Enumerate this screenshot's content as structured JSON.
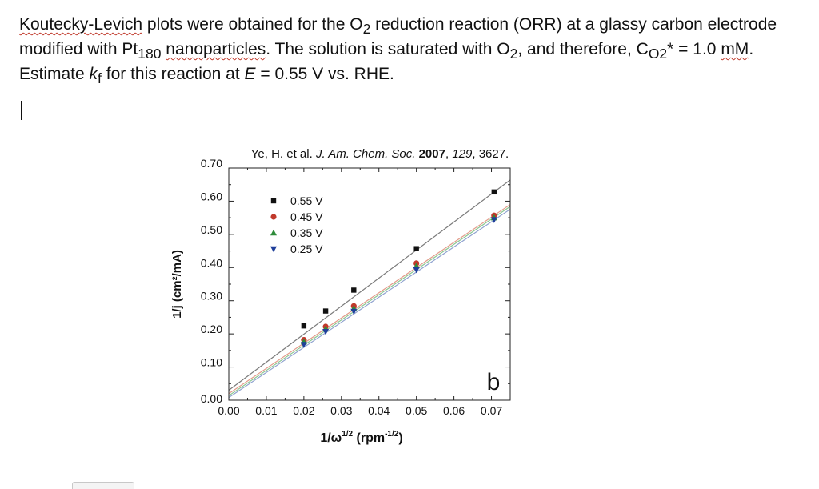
{
  "question": {
    "p1": "Koutecky-Levich",
    "p2": " plots were obtained for the O",
    "p3": "2",
    "p4": " reduction reaction (ORR) at a glassy carbon electrode modified with Pt",
    "p5": "180",
    "p6": " ",
    "p7": "nanoparticles",
    "p8": ". The solution is saturated with O",
    "p9": "2",
    "p10": ", and therefore, C",
    "p11": "O2",
    "p12": "* = 1.0 ",
    "p13": "mM",
    "p14": ". Estimate ",
    "p15": "k",
    "p16": "f",
    "p17": " for this reaction at ",
    "p18": "E",
    "p19": " = 0.55 V vs. RHE."
  },
  "chart_data": {
    "type": "scatter",
    "citation": {
      "authors": "Ye, H. et al.",
      "journal": "J. Am. Chem. Soc.",
      "year": "2007",
      "volume": "129",
      "pages": "3627."
    },
    "xlabel": {
      "base": "1/ω",
      "exp1": "1/2",
      "mid": " (rpm",
      "exp2": "-1/2",
      "end": ")"
    },
    "ylabel": "1/j (cm²/mA)",
    "xlim": [
      0,
      0.075
    ],
    "ylim": [
      0,
      0.7
    ],
    "xticks": [
      "0.00",
      "0.01",
      "0.02",
      "0.03",
      "0.04",
      "0.05",
      "0.06",
      "0.07"
    ],
    "yticks": [
      "0.00",
      "0.10",
      "0.20",
      "0.30",
      "0.40",
      "0.50",
      "0.60",
      "0.70"
    ],
    "panel_label": "b",
    "legend_position": "top-left",
    "series": [
      {
        "name": "0.55 V",
        "marker": "square",
        "color": "#111111",
        "line_color": "#7a7a7a",
        "x": [
          0.02,
          0.0258,
          0.0333,
          0.05,
          0.0707
        ],
        "y": [
          0.224,
          0.269,
          0.332,
          0.457,
          0.628
        ],
        "fit": [
          0.0302,
          8.45
        ]
      },
      {
        "name": "0.45 V",
        "marker": "circle",
        "color": "#c0392b",
        "line_color": "#e39b8a",
        "x": [
          0.02,
          0.0258,
          0.0333,
          0.05,
          0.0707
        ],
        "y": [
          0.182,
          0.222,
          0.284,
          0.413,
          0.557
        ],
        "fit": [
          0.02,
          7.6
        ]
      },
      {
        "name": "0.35 V",
        "marker": "triangle-up",
        "color": "#2e8b3a",
        "line_color": "#8cc792",
        "x": [
          0.02,
          0.0258,
          0.0333,
          0.05,
          0.0707
        ],
        "y": [
          0.176,
          0.215,
          0.277,
          0.405,
          0.55
        ],
        "fit": [
          0.014,
          7.6
        ]
      },
      {
        "name": "0.25 V",
        "marker": "triangle-down",
        "color": "#1f3f9a",
        "line_color": "#8fa2cf",
        "x": [
          0.02,
          0.0258,
          0.0333,
          0.05,
          0.0707
        ],
        "y": [
          0.168,
          0.207,
          0.268,
          0.393,
          0.544
        ],
        "fit": [
          0.008,
          7.57
        ]
      }
    ]
  }
}
